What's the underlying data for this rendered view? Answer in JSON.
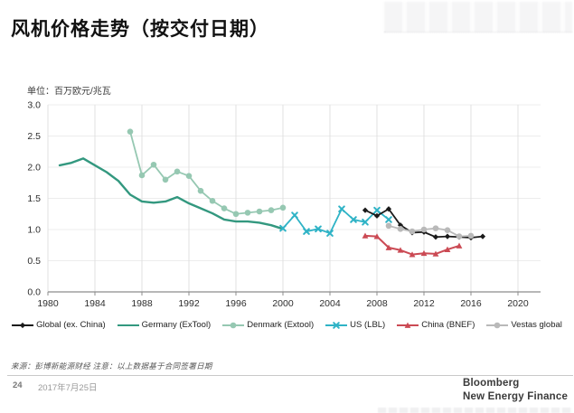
{
  "title": "风机价格走势（按交付日期）",
  "chart": {
    "unit_label": "单位：百万欧元/兆瓦"
  },
  "footer": {
    "source_note": "来源：彭博新能源财经 注意：以上数据基于合同签署日期",
    "page_number": "24",
    "date": "2017年7月25日",
    "brand_line1": "Bloomberg",
    "brand_line2": "New Energy Finance"
  },
  "chart_data": {
    "type": "line",
    "title": "风机价格走势（按交付日期）",
    "ylabel": "单位：百万欧元/兆瓦",
    "xlim": [
      1980,
      2022
    ],
    "ylim": [
      0,
      3.0
    ],
    "grid": true,
    "legend_position": "bottom",
    "xticks": [
      "1980",
      "1984",
      "1988",
      "1992",
      "1996",
      "2000",
      "2004",
      "2008",
      "2012",
      "2016",
      "2020"
    ],
    "yticks": [
      "0.0",
      "0.5",
      "1.0",
      "1.5",
      "2.0",
      "2.5",
      "3.0"
    ],
    "axis_color": "#8c8c8c",
    "grid_color_v": "#e1e1e1",
    "grid_color_h": "#ececec",
    "series": [
      {
        "name": "Global (ex. China)",
        "color": "#1b1b1b",
        "marker": "diamond",
        "x": [
          2007,
          2008,
          2009,
          2010,
          2011,
          2012,
          2013,
          2014,
          2015,
          2016,
          2017
        ],
        "values": [
          1.31,
          1.22,
          1.33,
          1.07,
          0.95,
          0.96,
          0.88,
          0.89,
          0.88,
          0.87,
          0.89
        ]
      },
      {
        "name": "Germany (ExTool)",
        "color": "#33987f",
        "marker": "none",
        "x": [
          1981,
          1982,
          1983,
          1984,
          1985,
          1986,
          1987,
          1988,
          1989,
          1990,
          1991,
          1992,
          1993,
          1994,
          1995,
          1996,
          1997,
          1998,
          1999,
          2000
        ],
        "values": [
          2.03,
          2.07,
          2.14,
          2.03,
          1.92,
          1.78,
          1.56,
          1.45,
          1.43,
          1.45,
          1.52,
          1.42,
          1.34,
          1.26,
          1.16,
          1.13,
          1.13,
          1.11,
          1.07,
          1.01
        ]
      },
      {
        "name": "Denmark (Extool)",
        "color": "#96c8b2",
        "marker": "circle",
        "x": [
          1987,
          1988,
          1989,
          1990,
          1991,
          1992,
          1993,
          1994,
          1995,
          1996,
          1997,
          1998,
          1999,
          2000
        ],
        "values": [
          2.57,
          1.87,
          2.04,
          1.8,
          1.93,
          1.86,
          1.62,
          1.46,
          1.34,
          1.25,
          1.27,
          1.29,
          1.31,
          1.35
        ]
      },
      {
        "name": "US (LBL)",
        "color": "#2fb3c6",
        "marker": "x",
        "x": [
          2000,
          2001,
          2002,
          2003,
          2004,
          2005,
          2006,
          2007,
          2008,
          2009
        ],
        "values": [
          1.02,
          1.23,
          0.97,
          1.01,
          0.94,
          1.33,
          1.16,
          1.12,
          1.31,
          1.16
        ]
      },
      {
        "name": "China (BNEF)",
        "color": "#cb4a54",
        "marker": "triangle",
        "x": [
          2007,
          2008,
          2009,
          2010,
          2011,
          2012,
          2013,
          2014,
          2015
        ],
        "values": [
          0.9,
          0.89,
          0.71,
          0.67,
          0.6,
          0.62,
          0.61,
          0.68,
          0.74
        ]
      },
      {
        "name": "Vestas global",
        "color": "#b9b9b9",
        "marker": "circle",
        "x": [
          2009,
          2010,
          2011,
          2012,
          2013,
          2014,
          2015,
          2016
        ],
        "values": [
          1.06,
          1.01,
          0.97,
          1.0,
          1.02,
          0.99,
          0.89,
          0.9
        ]
      }
    ]
  }
}
